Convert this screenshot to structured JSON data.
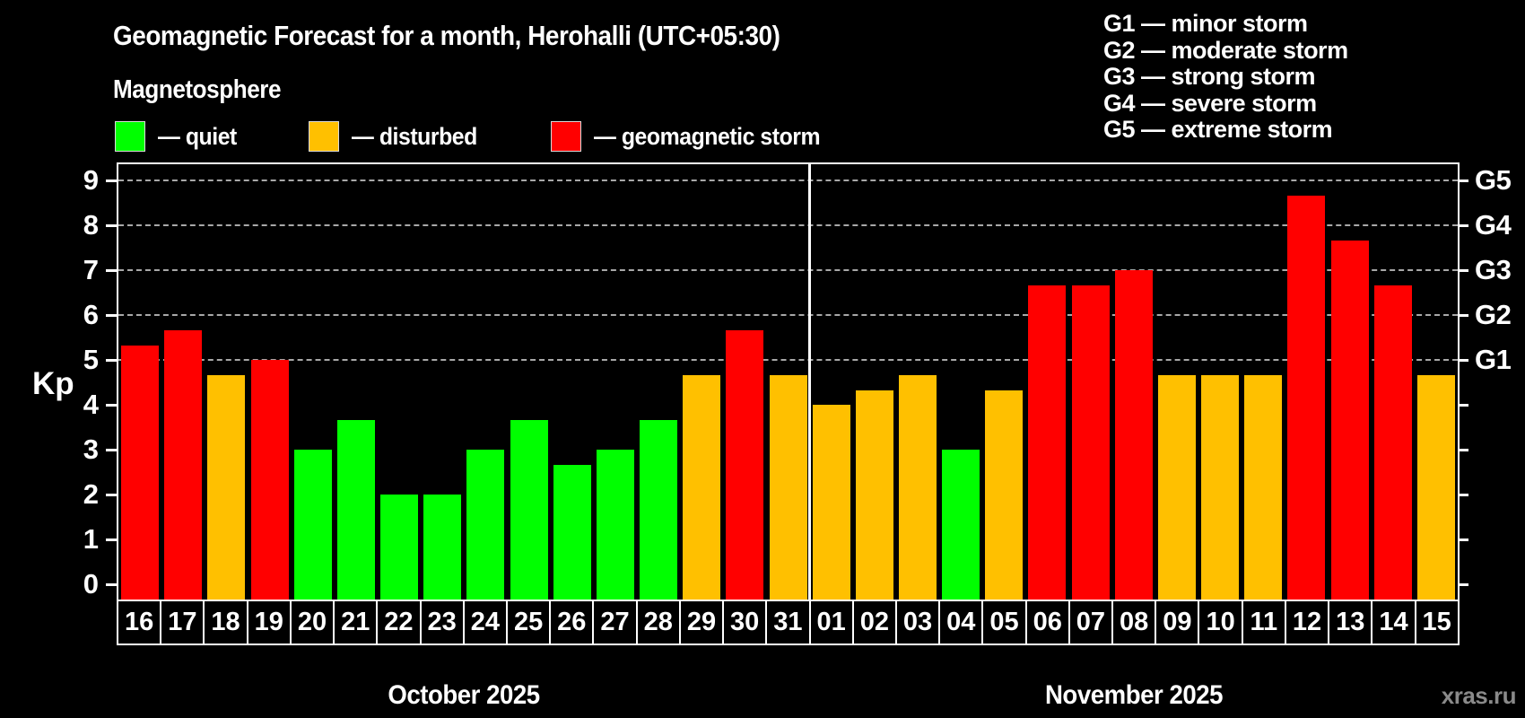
{
  "header": {
    "title": "Geomagnetic Forecast for a month, Herohalli (UTC+05:30)",
    "subtitle": "Magnetosphere"
  },
  "legend": {
    "items": [
      {
        "key": "quiet",
        "label": "— quiet",
        "color": "#00ff00"
      },
      {
        "key": "disturbed",
        "label": "— disturbed",
        "color": "#ffc000"
      },
      {
        "key": "storm",
        "label": "— geomagnetic storm",
        "color": "#ff0000"
      }
    ]
  },
  "g_legend": [
    {
      "label": "G1 — minor storm"
    },
    {
      "label": "G2 — moderate storm"
    },
    {
      "label": "G3 — strong storm"
    },
    {
      "label": "G4 — severe storm"
    },
    {
      "label": "G5 — extreme storm"
    }
  ],
  "axes": {
    "kp_label": "Kp",
    "left_ticks": [
      "0",
      "1",
      "2",
      "3",
      "4",
      "5",
      "6",
      "7",
      "8",
      "9"
    ],
    "right_labels": [
      {
        "kp": 5,
        "label": "G1"
      },
      {
        "kp": 6,
        "label": "G2"
      },
      {
        "kp": 7,
        "label": "G3"
      },
      {
        "kp": 8,
        "label": "G4"
      },
      {
        "kp": 9,
        "label": "G5"
      }
    ]
  },
  "colors": {
    "quiet": "#00ff00",
    "disturbed": "#ffc000",
    "storm": "#ff0000",
    "grid": "#a8a8a8",
    "axis": "#ffffff",
    "background": "#000000",
    "watermark_text": "#8a8a8a"
  },
  "watermark": "xras.ru",
  "chart_data": {
    "type": "bar",
    "title": "Geomagnetic Forecast for a month, Herohalli (UTC+05:30)",
    "ylabel": "Kp",
    "ylim": [
      0,
      9.35
    ],
    "yticks": [
      0,
      1,
      2,
      3,
      4,
      5,
      6,
      7,
      8,
      9
    ],
    "gridlines_at_kp": [
      5,
      6,
      7,
      8,
      9
    ],
    "grid_style": "dashed",
    "legend_position": "top-left",
    "months": [
      {
        "label": "October 2025",
        "count": 16
      },
      {
        "label": "November 2025",
        "count": 15
      }
    ],
    "bars": [
      {
        "month": "October 2025",
        "day": "16",
        "kp": 5.33,
        "status": "storm"
      },
      {
        "month": "October 2025",
        "day": "17",
        "kp": 5.67,
        "status": "storm"
      },
      {
        "month": "October 2025",
        "day": "18",
        "kp": 4.67,
        "status": "disturbed"
      },
      {
        "month": "October 2025",
        "day": "19",
        "kp": 5.0,
        "status": "storm"
      },
      {
        "month": "October 2025",
        "day": "20",
        "kp": 3.0,
        "status": "quiet"
      },
      {
        "month": "October 2025",
        "day": "21",
        "kp": 3.67,
        "status": "quiet"
      },
      {
        "month": "October 2025",
        "day": "22",
        "kp": 2.0,
        "status": "quiet"
      },
      {
        "month": "October 2025",
        "day": "23",
        "kp": 2.0,
        "status": "quiet"
      },
      {
        "month": "October 2025",
        "day": "24",
        "kp": 3.0,
        "status": "quiet"
      },
      {
        "month": "October 2025",
        "day": "25",
        "kp": 3.67,
        "status": "quiet"
      },
      {
        "month": "October 2025",
        "day": "26",
        "kp": 2.67,
        "status": "quiet"
      },
      {
        "month": "October 2025",
        "day": "27",
        "kp": 3.0,
        "status": "quiet"
      },
      {
        "month": "October 2025",
        "day": "28",
        "kp": 3.67,
        "status": "quiet"
      },
      {
        "month": "October 2025",
        "day": "29",
        "kp": 4.67,
        "status": "disturbed"
      },
      {
        "month": "October 2025",
        "day": "30",
        "kp": 5.67,
        "status": "storm"
      },
      {
        "month": "October 2025",
        "day": "31",
        "kp": 4.67,
        "status": "disturbed"
      },
      {
        "month": "November 2025",
        "day": "01",
        "kp": 4.0,
        "status": "disturbed"
      },
      {
        "month": "November 2025",
        "day": "02",
        "kp": 4.33,
        "status": "disturbed"
      },
      {
        "month": "November 2025",
        "day": "03",
        "kp": 4.67,
        "status": "disturbed"
      },
      {
        "month": "November 2025",
        "day": "04",
        "kp": 3.0,
        "status": "quiet"
      },
      {
        "month": "November 2025",
        "day": "05",
        "kp": 4.33,
        "status": "disturbed"
      },
      {
        "month": "November 2025",
        "day": "06",
        "kp": 6.67,
        "status": "storm"
      },
      {
        "month": "November 2025",
        "day": "07",
        "kp": 6.67,
        "status": "storm"
      },
      {
        "month": "November 2025",
        "day": "08",
        "kp": 7.0,
        "status": "storm"
      },
      {
        "month": "November 2025",
        "day": "09",
        "kp": 4.67,
        "status": "disturbed"
      },
      {
        "month": "November 2025",
        "day": "10",
        "kp": 4.67,
        "status": "disturbed"
      },
      {
        "month": "November 2025",
        "day": "11",
        "kp": 4.67,
        "status": "disturbed"
      },
      {
        "month": "November 2025",
        "day": "12",
        "kp": 8.67,
        "status": "storm"
      },
      {
        "month": "November 2025",
        "day": "13",
        "kp": 7.67,
        "status": "storm"
      },
      {
        "month": "November 2025",
        "day": "14",
        "kp": 6.67,
        "status": "storm"
      },
      {
        "month": "November 2025",
        "day": "15",
        "kp": 4.67,
        "status": "disturbed"
      }
    ]
  }
}
